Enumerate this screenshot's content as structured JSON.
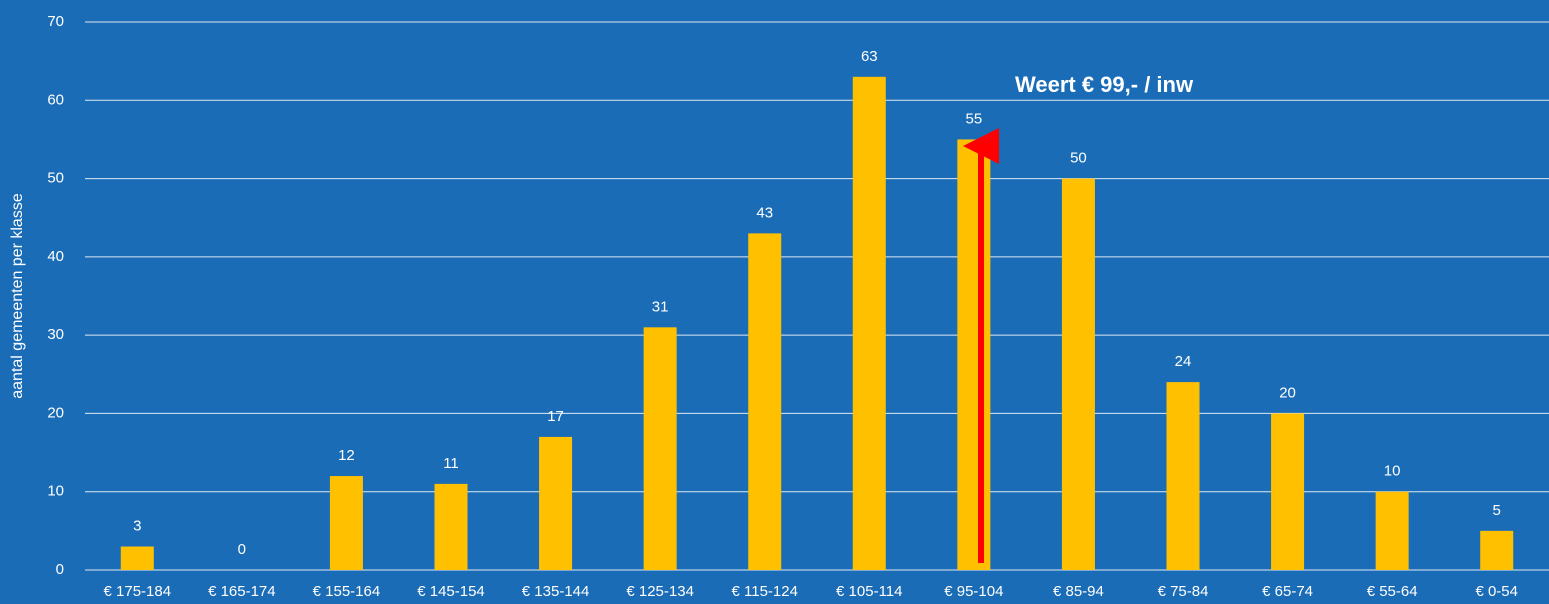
{
  "chart_data": {
    "type": "bar",
    "y_label": "aantal gemeenten per klasse",
    "annotation": "Weert € 99,- / inw",
    "categories": [
      "€ 175-184",
      "€ 165-174",
      "€ 155-164",
      "€ 145-154",
      "€ 135-144",
      "€ 125-134",
      "€ 115-124",
      "€ 105-114",
      "€ 95-104",
      "€ 85-94",
      "€ 75-84",
      "€ 65-74",
      "€ 55-64",
      "€ 0-54"
    ],
    "values": [
      3,
      0,
      12,
      11,
      17,
      31,
      43,
      63,
      55,
      50,
      24,
      20,
      10,
      5
    ],
    "color": "#ffc000",
    "ylim": [
      0,
      70
    ],
    "yticks": [
      0,
      10,
      20,
      30,
      40,
      50,
      60,
      70
    ],
    "grid": true
  }
}
